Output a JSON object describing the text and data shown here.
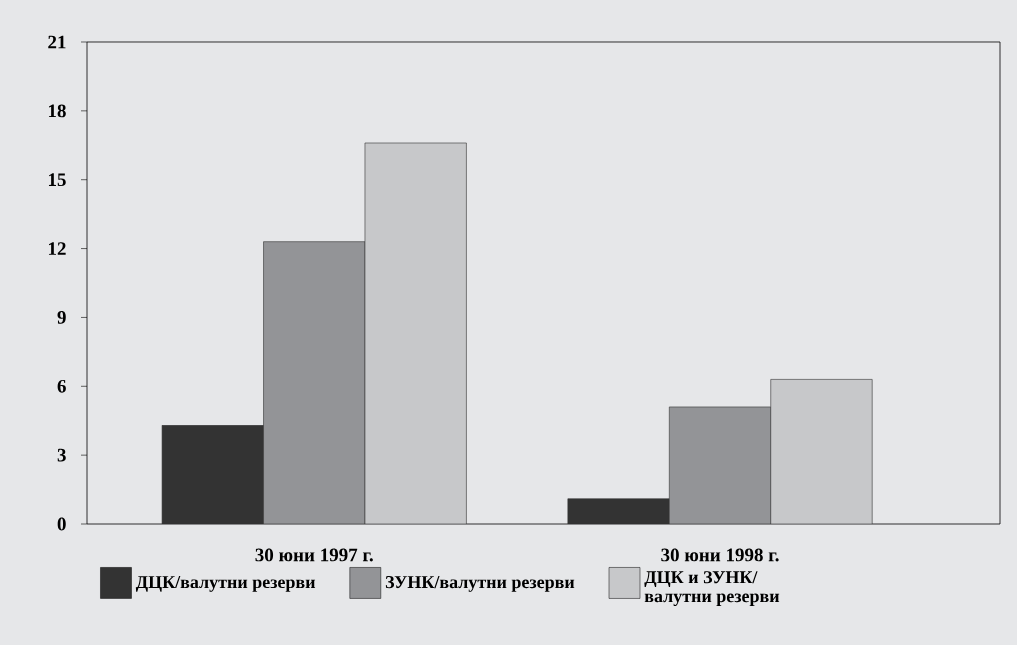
{
  "chart_data": {
    "type": "bar",
    "categories": [
      "30 юни 1997 г.",
      "30 юни 1998 г."
    ],
    "series": [
      {
        "name": "ДЦК/валутни резерви",
        "color": "#333333",
        "values": [
          4.3,
          1.1
        ]
      },
      {
        "name": "ЗУНК/валутни резерви",
        "color": "#939497",
        "values": [
          12.3,
          5.1
        ]
      },
      {
        "name": "ДЦК и ЗУНК/ валутни резерви",
        "color": "#c7c8ca",
        "values": [
          16.6,
          6.3
        ]
      }
    ],
    "ylim": [
      0,
      21
    ],
    "yticks": [
      0,
      3,
      6,
      9,
      12,
      15,
      18,
      21
    ],
    "legend": "bottom"
  }
}
